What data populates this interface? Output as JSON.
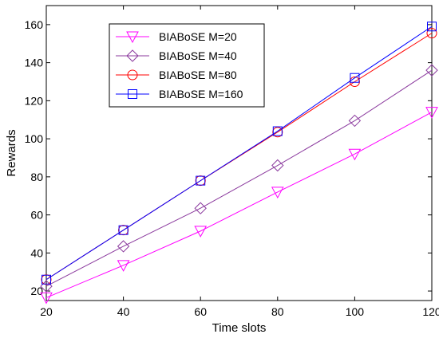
{
  "chart_data": {
    "type": "line",
    "xlabel": "Time slots",
    "ylabel": "Rewards",
    "xlim": [
      20,
      120
    ],
    "ylim": [
      15,
      170
    ],
    "x_ticks": [
      20,
      40,
      60,
      80,
      100,
      120
    ],
    "y_ticks": [
      20,
      40,
      60,
      80,
      100,
      120,
      140,
      160
    ],
    "grid": false,
    "legend_position": "top-left",
    "x": [
      20,
      40,
      60,
      80,
      100,
      120
    ],
    "series": [
      {
        "name": "BIABoSE M=20",
        "color": "#ff00ff",
        "marker": "triangle-down",
        "values": [
          16.5,
          33.5,
          51.5,
          72,
          92,
          114
        ]
      },
      {
        "name": "BIABoSE M=40",
        "color": "#8b3a9e",
        "marker": "diamond",
        "values": [
          22.5,
          43.5,
          63.5,
          86,
          109.5,
          136
        ]
      },
      {
        "name": "BIABoSE M=80",
        "color": "#ff0000",
        "marker": "circle",
        "values": [
          26,
          52,
          78,
          103.5,
          130,
          155.5
        ]
      },
      {
        "name": "BIABoSE M=160",
        "color": "#0000ff",
        "marker": "square",
        "values": [
          26,
          52,
          78,
          104,
          132,
          159
        ]
      }
    ]
  }
}
